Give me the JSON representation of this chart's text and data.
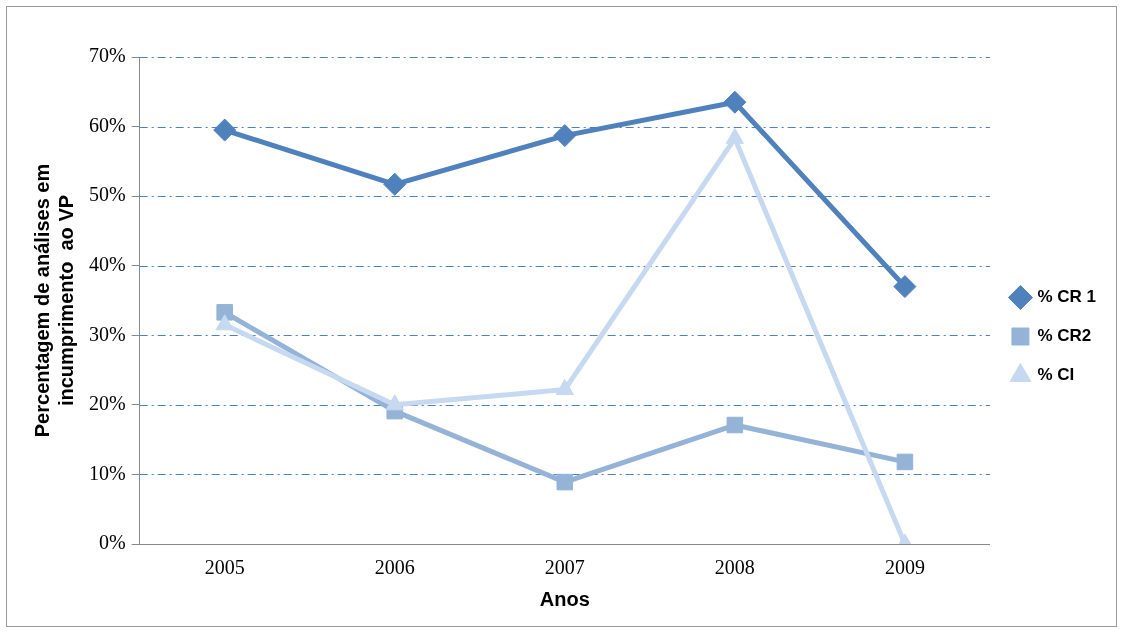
{
  "chart_data": {
    "type": "line",
    "xlabel": "Anos",
    "ylabel": "Percentagem de análises em incumprimento  ao VP",
    "categories": [
      "2005",
      "2006",
      "2007",
      "2008",
      "2009"
    ],
    "series": [
      {
        "name": "% CR 1",
        "color": "#4f81bd",
        "marker": "diamond",
        "values": [
          59.5,
          51.7,
          58.7,
          63.5,
          37.0
        ]
      },
      {
        "name": "% CR2",
        "color": "#95b3d7",
        "marker": "square",
        "values": [
          33.3,
          19.1,
          8.9,
          17.1,
          11.8
        ]
      },
      {
        "name": "% CI",
        "color": "#c6d9f1",
        "marker": "triangle",
        "values": [
          31.5,
          20.0,
          22.2,
          58.3,
          0
        ]
      }
    ],
    "ylim": [
      0,
      70
    ],
    "yticks": [
      {
        "value": 0,
        "label": "0%"
      },
      {
        "value": 10,
        "label": "10%"
      },
      {
        "value": 20,
        "label": "20%"
      },
      {
        "value": 30,
        "label": "30%"
      },
      {
        "value": 40,
        "label": "40%"
      },
      {
        "value": 50,
        "label": "50%"
      },
      {
        "value": 60,
        "label": "60%"
      },
      {
        "value": 70,
        "label": "70%"
      }
    ],
    "grid": "y",
    "legend": "right",
    "line_style": "solid"
  }
}
